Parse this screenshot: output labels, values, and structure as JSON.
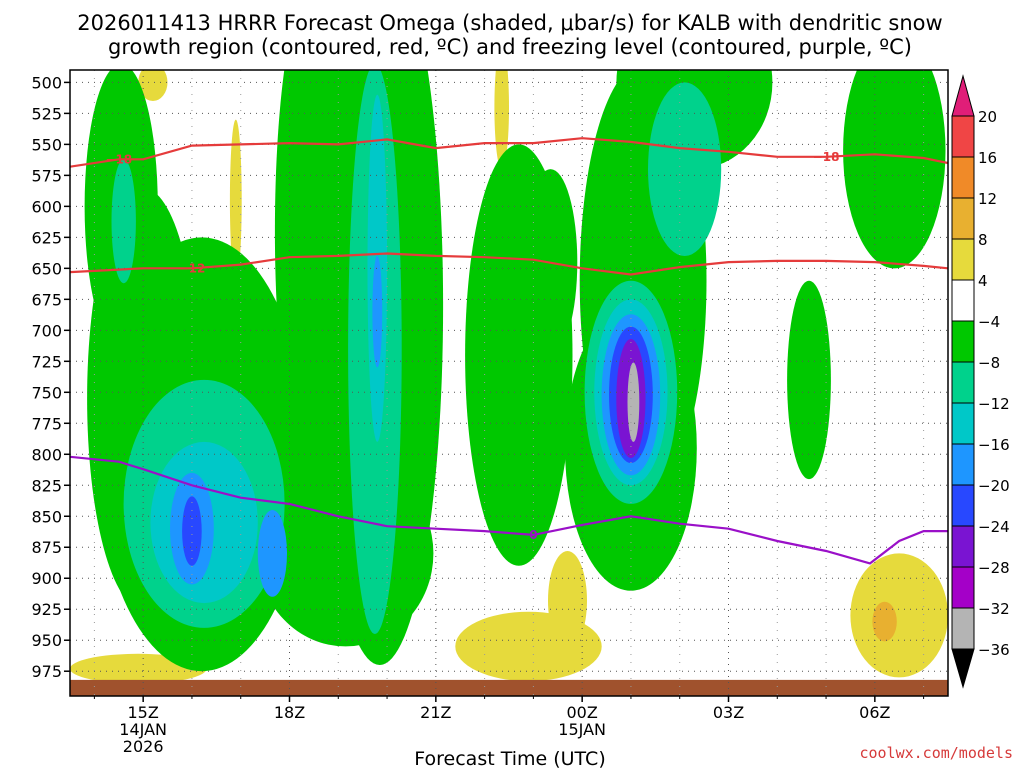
{
  "chart_data": {
    "type": "heatmap",
    "title_lines": [
      "2026011413 HRRR Forecast Omega (shaded, μbar/s) for KALB with dendritic snow",
      "growth region (contoured, red, ºC) and freezing level (contoured, purple, ºC)"
    ],
    "xlabel": "Forecast Time (UTC)",
    "x_range": [
      13.5,
      31.5
    ],
    "x_ticks": [
      {
        "value": 15,
        "lines": [
          "15Z",
          "14JAN",
          "2026"
        ]
      },
      {
        "value": 18,
        "lines": [
          "18Z"
        ]
      },
      {
        "value": 21,
        "lines": [
          "21Z"
        ]
      },
      {
        "value": 24,
        "lines": [
          "00Z",
          "15JAN"
        ]
      },
      {
        "value": 27,
        "lines": [
          "03Z"
        ]
      },
      {
        "value": 30,
        "lines": [
          "06Z"
        ]
      }
    ],
    "y_range": [
      490,
      995
    ],
    "y_ticks": [
      500,
      525,
      550,
      575,
      600,
      625,
      650,
      675,
      700,
      725,
      750,
      775,
      800,
      825,
      850,
      875,
      900,
      925,
      950,
      975
    ],
    "colorbar": {
      "labels": [
        "20",
        "16",
        "12",
        "8",
        "4",
        "−4",
        "−8",
        "−12",
        "−16",
        "−20",
        "−24",
        "−28",
        "−32",
        "−36"
      ],
      "colors": [
        "#f04545",
        "#f08a28",
        "#e8b030",
        "#e6da3c",
        "#ffffff",
        "#00c800",
        "#00d28c",
        "#00c8c8",
        "#1e96ff",
        "#2848ff",
        "#7a14d2",
        "#a400c8",
        "#b4b4b4"
      ],
      "top_color": "#e01e78",
      "bottom_color": "#000000"
    },
    "omega_cells": [
      {
        "level": "-8",
        "x": 14.55,
        "p": 600,
        "rx": 0.75,
        "rp": 115
      },
      {
        "level": "-8",
        "x": 15.0,
        "p": 755,
        "rx": 1.15,
        "rp": 170
      },
      {
        "level": "-8",
        "x": 16.2,
        "p": 800,
        "rx": 2.15,
        "rp": 175
      },
      {
        "level": "-8",
        "x": 19.85,
        "p": 680,
        "rx": 1.3,
        "rp": 290
      },
      {
        "level": "-8",
        "x": 18.5,
        "p": 620,
        "rx": 0.8,
        "rp": 200
      },
      {
        "level": "-8",
        "x": 19.15,
        "p": 880,
        "rx": 1.8,
        "rp": 75
      },
      {
        "level": "-8",
        "x": 22.7,
        "p": 720,
        "rx": 1.1,
        "rp": 170
      },
      {
        "level": "-8",
        "x": 23.35,
        "p": 645,
        "rx": 0.55,
        "rp": 75
      },
      {
        "level": "-8",
        "x": 25.25,
        "p": 660,
        "rx": 1.3,
        "rp": 175
      },
      {
        "level": "-8",
        "x": 25.0,
        "p": 795,
        "rx": 1.35,
        "rp": 115
      },
      {
        "level": "-8",
        "x": 25.4,
        "p": 540,
        "rx": 0.8,
        "rp": 80
      },
      {
        "level": "-8",
        "x": 26.3,
        "p": 500,
        "rx": 1.6,
        "rp": 70
      },
      {
        "level": "-8",
        "x": 30.4,
        "p": 555,
        "rx": 1.05,
        "rp": 95
      },
      {
        "level": "-8",
        "x": 28.65,
        "p": 740,
        "rx": 0.45,
        "rp": 80
      },
      {
        "level": "-12",
        "x": 16.25,
        "p": 840,
        "rx": 1.65,
        "rp": 100
      },
      {
        "level": "-12",
        "x": 19.75,
        "p": 715,
        "rx": 0.55,
        "rp": 230
      },
      {
        "level": "-12",
        "x": 14.6,
        "p": 612,
        "rx": 0.25,
        "rp": 50
      },
      {
        "level": "-12",
        "x": 25.0,
        "p": 750,
        "rx": 0.95,
        "rp": 90
      },
      {
        "level": "-12",
        "x": 26.1,
        "p": 570,
        "rx": 0.75,
        "rp": 70
      },
      {
        "level": "-16",
        "x": 16.25,
        "p": 855,
        "rx": 1.1,
        "rp": 65
      },
      {
        "level": "-16",
        "x": 19.8,
        "p": 650,
        "rx": 0.2,
        "rp": 140
      },
      {
        "level": "-16",
        "x": 25.0,
        "p": 750,
        "rx": 0.75,
        "rp": 75
      },
      {
        "level": "-20",
        "x": 16.0,
        "p": 860,
        "rx": 0.45,
        "rp": 45
      },
      {
        "level": "-20",
        "x": 17.65,
        "p": 880,
        "rx": 0.3,
        "rp": 35
      },
      {
        "level": "-20",
        "x": 19.8,
        "p": 685,
        "rx": 0.1,
        "rp": 45
      },
      {
        "level": "-20",
        "x": 25.0,
        "p": 752,
        "rx": 0.6,
        "rp": 65
      },
      {
        "level": "-24",
        "x": 16.0,
        "p": 862,
        "rx": 0.2,
        "rp": 28
      },
      {
        "level": "-24",
        "x": 25.0,
        "p": 752,
        "rx": 0.45,
        "rp": 55
      },
      {
        "level": "-28",
        "x": 25.0,
        "p": 755,
        "rx": 0.3,
        "rp": 48
      },
      {
        "level": "-32",
        "x": 25.05,
        "p": 758,
        "rx": 0.12,
        "rp": 32
      },
      {
        "level": "+4",
        "x": 14.9,
        "p": 973,
        "rx": 1.4,
        "rp": 12
      },
      {
        "level": "+4",
        "x": 22.9,
        "p": 955,
        "rx": 1.5,
        "rp": 28
      },
      {
        "level": "+4",
        "x": 23.7,
        "p": 918,
        "rx": 0.4,
        "rp": 40
      },
      {
        "level": "+4",
        "x": 30.5,
        "p": 930,
        "rx": 1.0,
        "rp": 50
      },
      {
        "level": "+4",
        "x": 19.8,
        "p": 515,
        "rx": 0.25,
        "rp": 25
      },
      {
        "level": "+4",
        "x": 22.35,
        "p": 520,
        "rx": 0.15,
        "rp": 50
      },
      {
        "level": "+4",
        "x": 16.9,
        "p": 595,
        "rx": 0.12,
        "rp": 65
      },
      {
        "level": "+4",
        "x": 15.2,
        "p": 500,
        "rx": 0.3,
        "rp": 15
      },
      {
        "level": "+8",
        "x": 30.2,
        "p": 935,
        "rx": 0.25,
        "rp": 16
      }
    ],
    "contours": [
      {
        "name": "-18C",
        "color": "#e53b3b",
        "label": "−18",
        "x": [
          13.5,
          14.5,
          15.0,
          16.0,
          17.0,
          18.0,
          19.0,
          20.0,
          21.0,
          22.0,
          23.0,
          24.0,
          25.0,
          26.0,
          27.0,
          28.0,
          29.0,
          30.0,
          31.0,
          31.5
        ],
        "p": [
          568,
          562,
          562,
          551,
          550,
          549,
          550,
          546,
          553,
          549,
          549,
          545,
          548,
          553,
          556,
          560,
          560,
          558,
          561,
          565
        ]
      },
      {
        "name": "-12C",
        "color": "#e53b3b",
        "label": "−12",
        "x": [
          13.5,
          14.5,
          15.0,
          16.0,
          17.0,
          18.0,
          19.0,
          20.0,
          21.0,
          22.0,
          23.0,
          24.0,
          25.0,
          26.0,
          27.0,
          28.0,
          29.0,
          30.0,
          31.0,
          31.5
        ],
        "p": [
          653,
          651,
          650,
          650,
          647,
          641,
          640,
          638,
          640,
          641,
          643,
          650,
          655,
          649,
          645,
          644,
          644,
          645,
          648,
          650
        ]
      },
      {
        "name": "0C",
        "color": "#9a10c8",
        "label": "0",
        "x": [
          13.5,
          14.5,
          15.0,
          16.0,
          17.0,
          18.0,
          19.0,
          20.0,
          21.0,
          22.0,
          23.0,
          24.0,
          25.0,
          26.0,
          27.0,
          28.0,
          29.0,
          29.9,
          30.5,
          31.0,
          31.5
        ],
        "p": [
          802,
          806,
          812,
          825,
          835,
          840,
          850,
          858,
          860,
          862,
          865,
          857,
          850,
          856,
          860,
          870,
          878,
          888,
          870,
          862,
          862
        ]
      }
    ],
    "credit": "coolwx.com/models"
  }
}
